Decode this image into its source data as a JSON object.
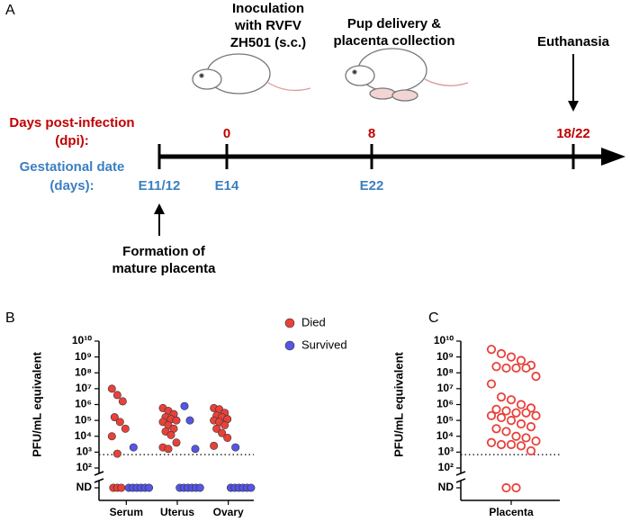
{
  "panel_labels": [
    "A",
    "B",
    "C"
  ],
  "timeline": {
    "events": [
      "Inoculation with RVFV ZH501 (s.c.)",
      "Pup delivery & placenta collection",
      "Euthanasia"
    ],
    "dpi_label": [
      "Days post-infection",
      "(dpi):"
    ],
    "gestation_label": [
      "Gestational date",
      "(days):"
    ],
    "dpi": [
      "0",
      "8",
      "18/22"
    ],
    "gestation": [
      "E11/12",
      "E14",
      "E22"
    ],
    "placenta_note": [
      "Formation of",
      "mature placenta"
    ]
  },
  "chart_data": [
    {
      "type": "scatter",
      "ylabel": "PFU/mL equivalent",
      "log_scale": true,
      "categories": [
        "Serum",
        "Uterus",
        "Ovary"
      ],
      "ylim": [
        100,
        10000000000
      ],
      "yticks": [
        {
          "value": 100,
          "label": "10²"
        },
        {
          "value": 1000,
          "label": "10³"
        },
        {
          "value": 10000,
          "label": "10⁴"
        },
        {
          "value": 100000,
          "label": "10⁵"
        },
        {
          "value": 1000000,
          "label": "10⁶"
        },
        {
          "value": 10000000,
          "label": "10⁷"
        },
        {
          "value": 100000000,
          "label": "10⁸"
        },
        {
          "value": 1000000000,
          "label": "10⁹"
        },
        {
          "value": 10000000000,
          "label": "10¹⁰"
        }
      ],
      "nd_label": "ND",
      "detection_limit": 700,
      "marker": "filled",
      "legend": "upper right",
      "series": [
        {
          "name": "Died",
          "color": "#e8413a",
          "values": [
            [
              10000000,
              4000000,
              1600000,
              160000,
              80000,
              30000,
              10000,
              800
            ],
            [
              600000,
              400000,
              250000,
              160000,
              120000,
              100000,
              80000,
              50000,
              30000,
              20000,
              12000,
              4000,
              2000,
              1600
            ],
            [
              600000,
              500000,
              300000,
              200000,
              160000,
              120000,
              100000,
              80000,
              50000,
              30000,
              16000,
              8000,
              2500
            ]
          ],
          "nd_counts": [
            3,
            0,
            0
          ]
        },
        {
          "name": "Survived",
          "color": "#5555e8",
          "values": [
            [
              2000
            ],
            [
              800000,
              100000,
              1600
            ],
            [
              2000
            ]
          ],
          "nd_counts": [
            6,
            6,
            6
          ]
        }
      ]
    },
    {
      "type": "scatter",
      "ylabel": "PFU/mL equivalent",
      "log_scale": true,
      "categories": [
        "Placenta"
      ],
      "ylim": [
        100,
        10000000000
      ],
      "yticks": [
        {
          "value": 100,
          "label": "10²"
        },
        {
          "value": 1000,
          "label": "10³"
        },
        {
          "value": 10000,
          "label": "10⁴"
        },
        {
          "value": 100000,
          "label": "10⁵"
        },
        {
          "value": 1000000,
          "label": "10⁶"
        },
        {
          "value": 10000000,
          "label": "10⁷"
        },
        {
          "value": 100000000,
          "label": "10⁸"
        },
        {
          "value": 1000000000,
          "label": "10⁹"
        },
        {
          "value": 10000000000,
          "label": "10¹⁰"
        }
      ],
      "nd_label": "ND",
      "detection_limit": 700,
      "marker": "open",
      "series": [
        {
          "color": "#e8413a",
          "values": [
            [
              3000000000,
              1600000000,
              1000000000,
              600000000,
              300000000,
              250000000,
              200000000,
              200000000,
              200000000,
              60000000,
              20000000,
              3000000,
              2000000,
              1000000,
              600000,
              500000,
              400000,
              300000,
              300000,
              200000,
              200000,
              150000,
              100000,
              60000,
              40000,
              30000,
              20000,
              10000,
              8000,
              5000,
              4000,
              3000,
              3000,
              2500,
              1200
            ]
          ],
          "nd_counts": [
            2
          ]
        }
      ]
    }
  ]
}
